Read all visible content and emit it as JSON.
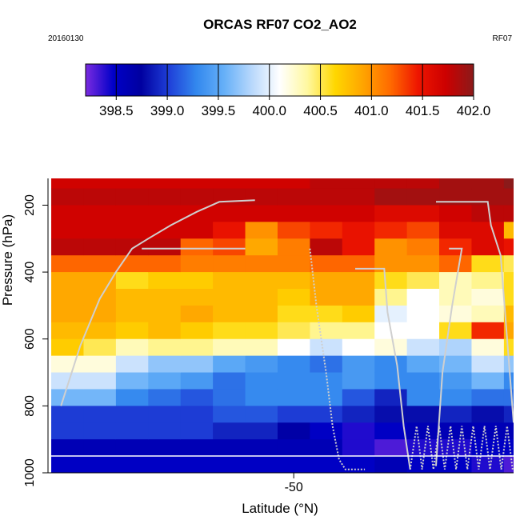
{
  "chart_data": {
    "type": "heatmap",
    "title": "ORCAS RF07 CO2_AO2",
    "date_label": "20160130",
    "flight_label": "RF07",
    "xlabel": "Latitude (°N)",
    "ylabel": "Pressure (hPa)",
    "x_tick_labels": [
      "-50"
    ],
    "y_tick_labels": [
      "200",
      "400",
      "600",
      "800",
      "1000"
    ],
    "colorbar": {
      "min": 398.2,
      "max": 402.0,
      "tick_labels": [
        "398.5",
        "399.0",
        "399.5",
        "400.0",
        "400.5",
        "401.0",
        "401.5",
        "402.0"
      ],
      "stops": [
        "#7a2be0",
        "#0000c8",
        "#0000a0",
        "#1f3fd8",
        "#3388ee",
        "#66b0f8",
        "#b8d8fc",
        "#ffffff",
        "#fff8a0",
        "#ffd700",
        "#ffa500",
        "#ff6a00",
        "#ee1500",
        "#cc0000",
        "#8b1a1a"
      ]
    },
    "x_ticks": [
      -50
    ],
    "y_ticks": [
      200,
      400,
      600,
      800,
      1000
    ],
    "xlim": [
      -57.6,
      -43.2
    ],
    "ylim": [
      1000,
      0
    ],
    "grid": false,
    "legend": "colorbar top",
    "cell_pressure_edges": [
      120,
      150,
      200,
      250,
      300,
      350,
      400,
      450,
      500,
      550,
      600,
      650,
      700,
      750,
      800,
      850,
      900,
      950,
      1000
    ],
    "columns": [
      {
        "lat": -57.0,
        "values": [
          401.7,
          401.8,
          401.7,
          401.7,
          401.8,
          401.2,
          400.9,
          400.9,
          400.9,
          400.8,
          400.7,
          400.2,
          399.9,
          399.6,
          399.0,
          399.0,
          398.6,
          398.5
        ]
      },
      {
        "lat": -56.0,
        "values": [
          401.7,
          401.8,
          401.7,
          401.7,
          401.8,
          401.2,
          400.9,
          400.9,
          400.9,
          400.8,
          400.5,
          400.2,
          399.9,
          399.6,
          399.0,
          399.0,
          398.6,
          398.5
        ]
      },
      {
        "lat": -55.0,
        "values": [
          401.7,
          401.8,
          401.7,
          401.7,
          401.8,
          401.2,
          400.6,
          400.8,
          400.8,
          400.7,
          400.3,
          399.9,
          399.6,
          399.3,
          399.0,
          399.0,
          398.6,
          398.5
        ]
      },
      {
        "lat": -54.0,
        "values": [
          401.7,
          401.8,
          401.7,
          401.7,
          401.8,
          401.2,
          400.7,
          400.8,
          400.8,
          400.8,
          400.4,
          399.7,
          399.5,
          399.2,
          399.0,
          399.0,
          398.6,
          398.5
        ]
      },
      {
        "lat": -53.0,
        "values": [
          401.7,
          401.8,
          401.7,
          401.7,
          401.2,
          401.1,
          400.7,
          400.8,
          400.9,
          400.7,
          400.4,
          399.7,
          399.4,
          399.1,
          399.0,
          399.0,
          398.6,
          398.5
        ]
      },
      {
        "lat": -52.0,
        "values": [
          401.7,
          401.8,
          401.7,
          401.5,
          401.3,
          401.1,
          400.8,
          400.8,
          400.8,
          400.6,
          400.3,
          399.5,
          399.2,
          399.2,
          399.1,
          398.9,
          398.6,
          398.5
        ]
      },
      {
        "lat": -51.0,
        "values": [
          401.7,
          401.8,
          401.7,
          401.0,
          400.9,
          401.1,
          400.8,
          400.8,
          400.8,
          400.6,
          400.3,
          399.4,
          399.3,
          399.3,
          399.1,
          398.9,
          398.6,
          398.5
        ]
      },
      {
        "lat": -50.0,
        "values": [
          401.7,
          401.8,
          401.7,
          401.3,
          401.1,
          401.1,
          400.8,
          400.7,
          400.6,
          400.5,
          400.1,
          399.3,
          399.3,
          399.3,
          399.0,
          398.7,
          398.6,
          398.5
        ]
      },
      {
        "lat": -49.0,
        "values": [
          401.8,
          401.8,
          401.7,
          401.4,
          401.8,
          401.2,
          400.9,
          400.9,
          400.6,
          400.4,
          399.9,
          399.2,
          399.3,
          399.3,
          399.0,
          398.5,
          398.6,
          398.5
        ]
      },
      {
        "lat": -48.0,
        "values": [
          401.8,
          401.8,
          401.7,
          401.5,
          401.5,
          401.2,
          400.9,
          400.9,
          400.7,
          400.4,
          400.1,
          399.4,
          399.4,
          399.1,
          398.9,
          398.4,
          398.4,
          398.5
        ]
      },
      {
        "lat": -47.0,
        "values": [
          401.8,
          401.9,
          401.6,
          401.4,
          401.0,
          401.0,
          400.6,
          400.4,
          400.0,
          400.1,
          400.2,
          399.3,
          399.3,
          398.9,
          398.8,
          398.5,
          398.3,
          398.6
        ]
      },
      {
        "lat": -46.0,
        "values": [
          401.8,
          401.9,
          401.6,
          401.3,
          401.1,
          401.0,
          400.5,
          400.1,
          400.1,
          400.1,
          399.9,
          399.5,
          399.3,
          399.3,
          398.8,
          398.6,
          398.4,
          398.5
        ]
      },
      {
        "lat": -45.0,
        "values": [
          401.9,
          401.9,
          401.7,
          401.6,
          401.4,
          401.2,
          400.3,
          400.3,
          400.2,
          400.6,
          399.8,
          399.6,
          399.4,
          399.3,
          398.9,
          398.6,
          398.4,
          398.5
        ]
      },
      {
        "lat": -44.0,
        "values": [
          401.9,
          401.9,
          401.8,
          401.6,
          401.6,
          400.6,
          400.4,
          400.2,
          400.3,
          401.4,
          400.2,
          399.9,
          399.6,
          399.2,
          398.8,
          398.6,
          398.5,
          398.4
        ]
      },
      {
        "lat": -43.0,
        "values": [
          402.0,
          401.9,
          401.8,
          400.8,
          401.5,
          400.5,
          400.6,
          400.6,
          400.8,
          400.9,
          400.6,
          399.7,
          399.3,
          399.2,
          398.9,
          398.6,
          398.5,
          398.3
        ]
      }
    ]
  }
}
